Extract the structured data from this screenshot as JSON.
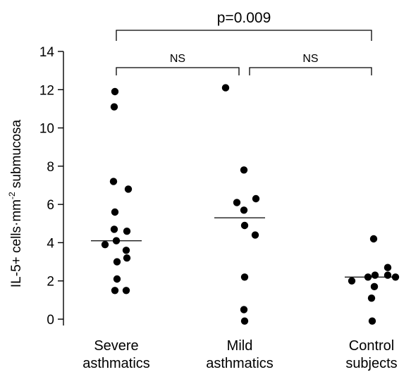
{
  "chart_data": {
    "type": "scatter",
    "ylabel_main": "IL-5+ cells·mm",
    "ylabel_sup": "-2",
    "ylabel_tail": " submucosa",
    "ylim": [
      0,
      14
    ],
    "yticks": [
      0,
      2,
      4,
      6,
      8,
      10,
      12,
      14
    ],
    "groups": [
      {
        "label_line1": "Severe",
        "label_line2": "asthmatics",
        "median": 4.1,
        "values": [
          11.9,
          11.1,
          7.2,
          6.8,
          5.6,
          4.7,
          4.6,
          4.1,
          3.9,
          3.6,
          3.2,
          3.0,
          2.1,
          1.5,
          1.5
        ]
      },
      {
        "label_line1": "Mild",
        "label_line2": "asthmatics",
        "median": 5.3,
        "values": [
          12.1,
          7.8,
          6.3,
          6.1,
          5.7,
          4.9,
          4.4,
          2.2,
          0.5,
          -0.1
        ]
      },
      {
        "label_line1": "Control",
        "label_line2": "subjects",
        "median": 2.2,
        "values": [
          4.2,
          2.7,
          2.3,
          2.3,
          2.2,
          2.2,
          2.0,
          1.7,
          1.1,
          -0.1
        ]
      }
    ],
    "comparisons": [
      {
        "label": "p=0.009",
        "from": 0,
        "to": 2,
        "level": "top"
      },
      {
        "label": "NS",
        "from": 0,
        "to": 1,
        "level": "low"
      },
      {
        "label": "NS",
        "from": 1,
        "to": 2,
        "level": "low"
      }
    ]
  }
}
